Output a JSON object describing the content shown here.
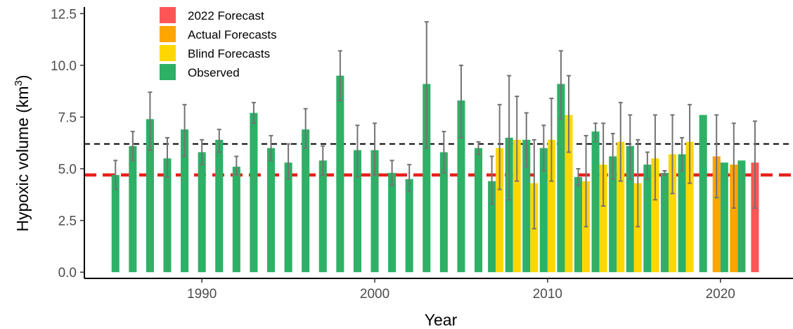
{
  "chart_data": {
    "type": "bar",
    "xlabel": "Year",
    "ylabel_main": "Hypoxic volume (km",
    "ylabel_sup": "3",
    "ylabel_close": ")",
    "xlim": [
      1983.2,
      2024.2
    ],
    "ylim": [
      -0.3,
      12.75
    ],
    "x_ticks": [
      1990,
      2000,
      2010,
      2020
    ],
    "y_ticks": [
      "0.0",
      "2.5",
      "5.0",
      "7.5",
      "10.0",
      "12.5"
    ],
    "grid": false,
    "reference_lines": [
      {
        "y": 6.2,
        "color": "#000000",
        "style": "dashed"
      },
      {
        "y": 4.7,
        "color": "#e8201b",
        "style": "dashed-thick"
      }
    ],
    "legend": {
      "position": "top-left",
      "entries": [
        {
          "label": "2022 Forecast",
          "color": "#ff5555"
        },
        {
          "label": "Actual Forecasts",
          "color": "#ffa500"
        },
        {
          "label": "Blind Forecasts",
          "color": "#ffd700"
        },
        {
          "label": "Observed",
          "color": "#2eb066"
        }
      ]
    },
    "series": [
      {
        "name": "Observed",
        "color": "#2eb066",
        "points": [
          {
            "x": 1985,
            "y": 4.7,
            "lo": 4.0,
            "hi": 5.4
          },
          {
            "x": 1986,
            "y": 6.1,
            "lo": 5.4,
            "hi": 6.8
          },
          {
            "x": 1987,
            "y": 7.4,
            "lo": 5.9,
            "hi": 8.7
          },
          {
            "x": 1988,
            "y": 5.5,
            "lo": 4.6,
            "hi": 6.5
          },
          {
            "x": 1989,
            "y": 6.9,
            "lo": 5.6,
            "hi": 8.1
          },
          {
            "x": 1990,
            "y": 5.8,
            "lo": 5.2,
            "hi": 6.4
          },
          {
            "x": 1991,
            "y": 6.4,
            "lo": 5.8,
            "hi": 6.9
          },
          {
            "x": 1992,
            "y": 5.1,
            "lo": 4.7,
            "hi": 5.6
          },
          {
            "x": 1993,
            "y": 7.7,
            "lo": 7.2,
            "hi": 8.2
          },
          {
            "x": 1994,
            "y": 6.0,
            "lo": 5.4,
            "hi": 6.6
          },
          {
            "x": 1995,
            "y": 5.3,
            "lo": 4.5,
            "hi": 6.2
          },
          {
            "x": 1996,
            "y": 6.9,
            "lo": 6.0,
            "hi": 7.9
          },
          {
            "x": 1997,
            "y": 5.4,
            "lo": 4.7,
            "hi": 6.1
          },
          {
            "x": 1998,
            "y": 9.5,
            "lo": 8.3,
            "hi": 10.7
          },
          {
            "x": 1999,
            "y": 5.9,
            "lo": 4.6,
            "hi": 7.1
          },
          {
            "x": 2000,
            "y": 5.9,
            "lo": 4.7,
            "hi": 7.2
          },
          {
            "x": 2001,
            "y": 4.8,
            "lo": 4.2,
            "hi": 5.4
          },
          {
            "x": 2002,
            "y": 4.5,
            "lo": 3.9,
            "hi": 5.2
          },
          {
            "x": 2003,
            "y": 9.1,
            "lo": 6.0,
            "hi": 12.1
          },
          {
            "x": 2004,
            "y": 5.8,
            "lo": 4.8,
            "hi": 6.8
          },
          {
            "x": 2005,
            "y": 8.3,
            "lo": 6.5,
            "hi": 10.0
          },
          {
            "x": 2006,
            "y": 6.0,
            "lo": 5.7,
            "hi": 6.3
          },
          {
            "x": 2007,
            "y": 4.4,
            "lo": 3.3,
            "hi": 5.6
          },
          {
            "x": 2008,
            "y": 6.5,
            "lo": 3.5,
            "hi": 9.5
          },
          {
            "x": 2009,
            "y": 6.4,
            "lo": 5.1,
            "hi": 7.7
          },
          {
            "x": 2010,
            "y": 6.0,
            "lo": 4.9,
            "hi": 7.1
          },
          {
            "x": 2011,
            "y": 9.1,
            "lo": 7.4,
            "hi": 10.7
          },
          {
            "x": 2012,
            "y": 4.6,
            "lo": 4.2,
            "hi": 5.0
          },
          {
            "x": 2013,
            "y": 6.8,
            "lo": 6.3,
            "hi": 7.2
          },
          {
            "x": 2014,
            "y": 5.6,
            "lo": 4.5,
            "hi": 6.7
          },
          {
            "x": 2015,
            "y": 6.1,
            "lo": 4.5,
            "hi": 7.6
          },
          {
            "x": 2016,
            "y": 5.2,
            "lo": 4.5,
            "hi": 5.8
          },
          {
            "x": 2017,
            "y": 4.8,
            "lo": 4.7,
            "hi": 4.9
          },
          {
            "x": 2018,
            "y": 5.7,
            "lo": 4.9,
            "hi": 6.5
          },
          {
            "x": 2019,
            "y": 7.6
          },
          {
            "x": 2020,
            "y": 5.3
          },
          {
            "x": 2021,
            "y": 5.4
          }
        ]
      },
      {
        "name": "Blind Forecasts",
        "color": "#ffd700",
        "points": [
          {
            "x": 2007,
            "y": 6.0,
            "lo": 4.0,
            "hi": 8.1
          },
          {
            "x": 2008,
            "y": 6.4,
            "lo": 4.4,
            "hi": 8.5
          },
          {
            "x": 2009,
            "y": 4.3,
            "lo": 2.1,
            "hi": 6.4
          },
          {
            "x": 2010,
            "y": 6.4,
            "lo": 4.4,
            "hi": 8.4
          },
          {
            "x": 2011,
            "y": 7.6,
            "lo": 5.8,
            "hi": 9.5
          },
          {
            "x": 2012,
            "y": 4.4,
            "lo": 2.2,
            "hi": 6.6
          },
          {
            "x": 2013,
            "y": 5.2,
            "lo": 3.2,
            "hi": 7.2
          },
          {
            "x": 2014,
            "y": 6.3,
            "lo": 4.4,
            "hi": 8.2
          },
          {
            "x": 2015,
            "y": 4.3,
            "lo": 2.2,
            "hi": 6.4
          },
          {
            "x": 2016,
            "y": 5.5,
            "lo": 3.5,
            "hi": 7.6
          },
          {
            "x": 2017,
            "y": 5.7,
            "lo": 3.8,
            "hi": 7.6
          },
          {
            "x": 2018,
            "y": 6.3,
            "lo": 4.3,
            "hi": 8.1
          }
        ]
      },
      {
        "name": "Actual Forecasts",
        "color": "#ffa500",
        "points": [
          {
            "x": 2020,
            "y": 5.6,
            "lo": 3.6,
            "hi": 7.6
          },
          {
            "x": 2021,
            "y": 5.2,
            "lo": 3.1,
            "hi": 7.2
          }
        ]
      },
      {
        "name": "2022 Forecast",
        "color": "#ff5555",
        "points": [
          {
            "x": 2022,
            "y": 5.3,
            "lo": 3.1,
            "hi": 7.3
          }
        ]
      }
    ]
  }
}
